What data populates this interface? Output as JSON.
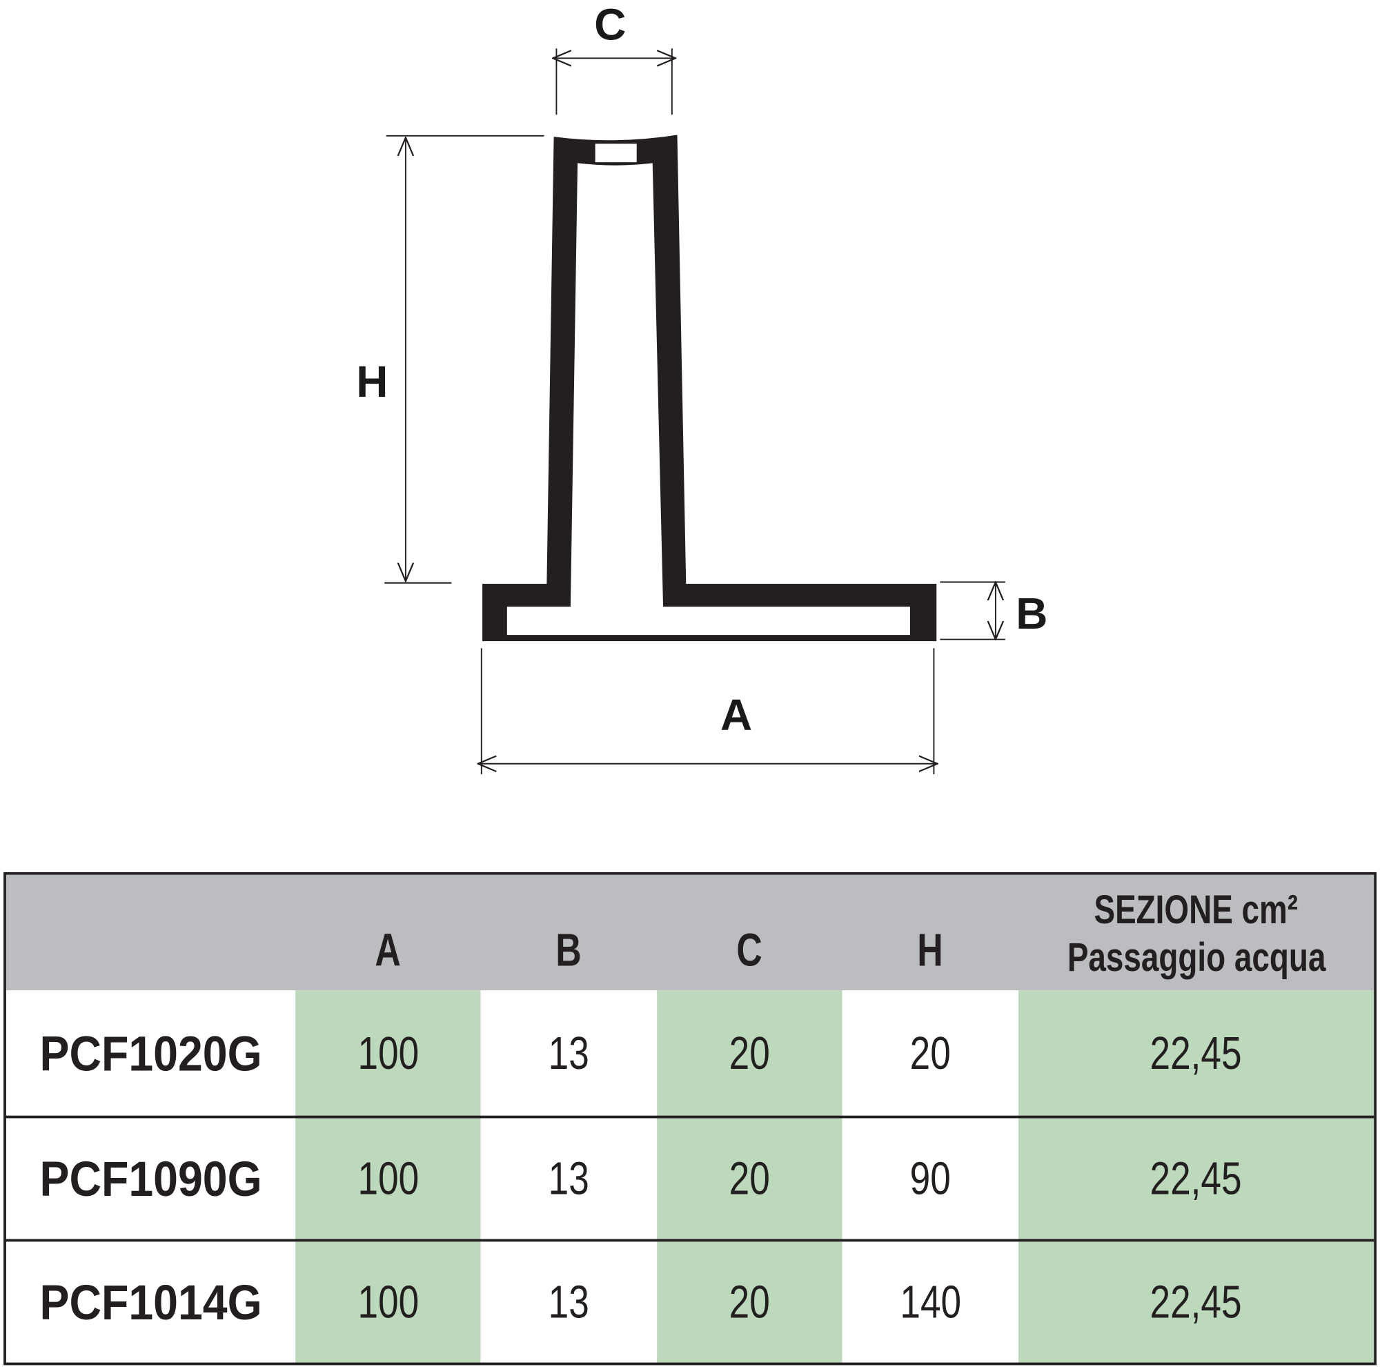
{
  "diagram": {
    "labels": {
      "A": "A",
      "B": "B",
      "C": "C",
      "H": "H"
    },
    "colors": {
      "profile": "#231f20",
      "header_bg": "#bcbdc1",
      "highlight_bg": "#bcd9bc"
    }
  },
  "table": {
    "headers": [
      "",
      "A",
      "B",
      "C",
      "H"
    ],
    "section_header": {
      "line1": "SEZIONE cm²",
      "line2": "Passaggio acqua"
    },
    "rows": [
      {
        "code": "PCF1020G",
        "A": "100",
        "B": "13",
        "C": "20",
        "H": "20",
        "sezione": "22,45"
      },
      {
        "code": "PCF1090G",
        "A": "100",
        "B": "13",
        "C": "20",
        "H": "90",
        "sezione": "22,45"
      },
      {
        "code": "PCF1014G",
        "A": "100",
        "B": "13",
        "C": "20",
        "H": "140",
        "sezione": "22,45"
      }
    ]
  }
}
